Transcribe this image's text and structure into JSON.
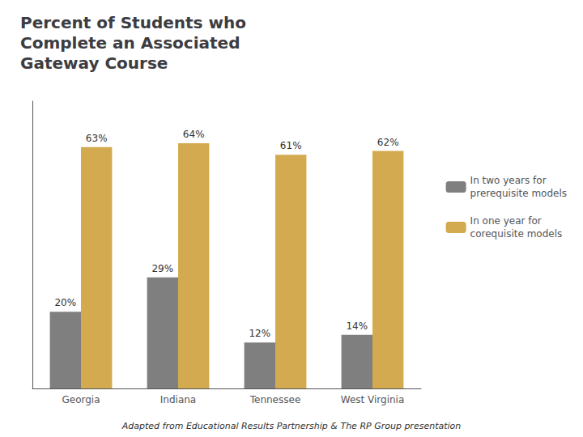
{
  "chart_data": {
    "type": "bar",
    "title": "Percent of Students who\nComplete an Associated\nGateway Course",
    "categories": [
      "Georgia",
      "Indiana",
      "Tennessee",
      "West Virginia"
    ],
    "series": [
      {
        "name": "In two years for\nprerequisite models",
        "color": "#7f7f7f",
        "values": [
          20,
          29,
          12,
          14
        ],
        "value_labels": [
          "20%",
          "29%",
          "12%",
          "14%"
        ]
      },
      {
        "name": "In one year for\ncorequisite models",
        "color": "#D4AA50",
        "values": [
          63,
          64,
          61,
          62
        ],
        "value_labels": [
          "63%",
          "64%",
          "61%",
          "62%"
        ]
      }
    ],
    "ylim": [
      0,
      75
    ],
    "yticks": [],
    "grid": false,
    "tick_labels": "x",
    "data_labels": true,
    "legend": "right",
    "annotations": [
      "Adapted from Educational Results Partnership & The RP Group presentation"
    ]
  }
}
